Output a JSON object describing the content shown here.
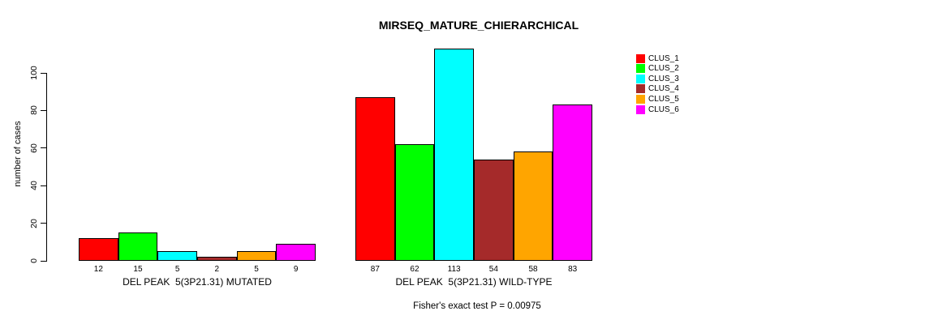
{
  "chart_data": {
    "type": "bar",
    "title": "MIRSEQ_MATURE_CHIERARCHICAL",
    "ylabel": "number of cases",
    "footnote": "Fisher's exact test P = 0.00975",
    "categories": [
      "DEL PEAK  5(3P21.31) MUTATED",
      "DEL PEAK  5(3P21.31) WILD-TYPE"
    ],
    "series": [
      {
        "name": "CLUS_1",
        "color": "#ff0000",
        "values": [
          12,
          87
        ]
      },
      {
        "name": "CLUS_2",
        "color": "#00ff00",
        "values": [
          15,
          62
        ]
      },
      {
        "name": "CLUS_3",
        "color": "#00ffff",
        "values": [
          5,
          113
        ]
      },
      {
        "name": "CLUS_4",
        "color": "#a52a2a",
        "values": [
          2,
          54
        ]
      },
      {
        "name": "CLUS_5",
        "color": "#ffa500",
        "values": [
          5,
          58
        ]
      },
      {
        "name": "CLUS_6",
        "color": "#ff00ff",
        "values": [
          9,
          83
        ]
      }
    ],
    "yticks": [
      0,
      20,
      40,
      60,
      80,
      100
    ],
    "ylim": [
      0,
      113
    ],
    "bar_value_labels_shown": true,
    "legend_position": "topright",
    "grid": false,
    "axis_color": "#000000",
    "background": "#ffffff"
  }
}
